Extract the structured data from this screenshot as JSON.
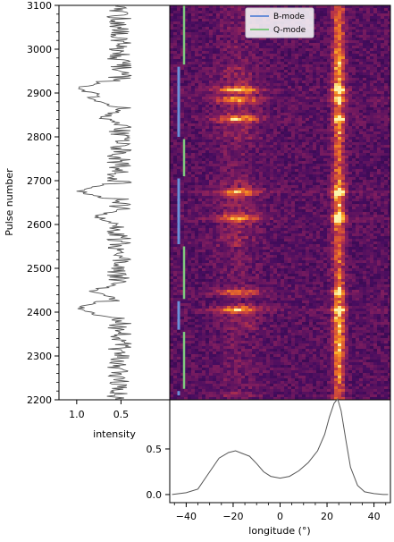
{
  "chart_data": [
    {
      "type": "line",
      "panel": "left-intensity-profile",
      "ylabel": "Pulse number",
      "xlabel": "intensity",
      "xlim": [
        1.2,
        -0.05
      ],
      "ylim": [
        2200,
        3100
      ],
      "x_ticks": [
        "1.0",
        "0.5"
      ],
      "y_ticks": [
        "2200",
        "2300",
        "2400",
        "2500",
        "2600",
        "2700",
        "2800",
        "2900",
        "3000",
        "3100"
      ],
      "series_color": "#555555",
      "dips": [
        {
          "pulse": 2910,
          "intensity": 0.98
        },
        {
          "pulse": 2888,
          "intensity": 0.85
        },
        {
          "pulse": 2844,
          "intensity": 0.72
        },
        {
          "pulse": 2676,
          "intensity": 0.95
        },
        {
          "pulse": 2618,
          "intensity": 0.78
        },
        {
          "pulse": 2408,
          "intensity": 1.0
        },
        {
          "pulse": 2448,
          "intensity": 0.82
        }
      ]
    },
    {
      "type": "heatmap",
      "panel": "pulse-stack",
      "xlim": [
        -47,
        47
      ],
      "ylim": [
        2200,
        3100
      ],
      "colormap": "inferno",
      "bright_columns_longitude": [
        -18,
        25
      ],
      "legend": [
        {
          "label": "B-mode",
          "color": "#6a8fd8"
        },
        {
          "label": "Q-mode",
          "color": "#7fc87f"
        }
      ],
      "legend_position": "top-center",
      "b_mode_ranges": [
        [
          2210,
          2220
        ],
        [
          2360,
          2425
        ],
        [
          2555,
          2705
        ],
        [
          2800,
          2960
        ]
      ],
      "q_mode_ranges": [
        [
          2225,
          2355
        ],
        [
          2430,
          2550
        ],
        [
          2710,
          2795
        ],
        [
          2965,
          3100
        ]
      ]
    },
    {
      "type": "line",
      "panel": "integrated-profile",
      "xlabel": "longitude (°)",
      "xlim": [
        -47,
        47
      ],
      "ylim": [
        -0.03,
        1.0
      ],
      "x_ticks": [
        "−40",
        "−20",
        "0",
        "20",
        "40"
      ],
      "y_ticks": [
        "0.0",
        "0.5"
      ],
      "series_color": "#555555",
      "x": [
        -46,
        -40,
        -35,
        -30,
        -26,
        -22,
        -19,
        -16,
        -13,
        -10,
        -7,
        -4,
        0,
        4,
        8,
        12,
        16,
        19,
        21,
        23,
        24.5,
        26,
        28,
        30,
        33,
        36,
        40,
        44,
        46
      ],
      "y": [
        0.0,
        0.02,
        0.06,
        0.25,
        0.4,
        0.46,
        0.48,
        0.45,
        0.42,
        0.34,
        0.25,
        0.2,
        0.18,
        0.2,
        0.26,
        0.35,
        0.48,
        0.66,
        0.85,
        1.0,
        1.05,
        0.92,
        0.6,
        0.3,
        0.1,
        0.03,
        0.01,
        0.0,
        0.0
      ]
    }
  ]
}
